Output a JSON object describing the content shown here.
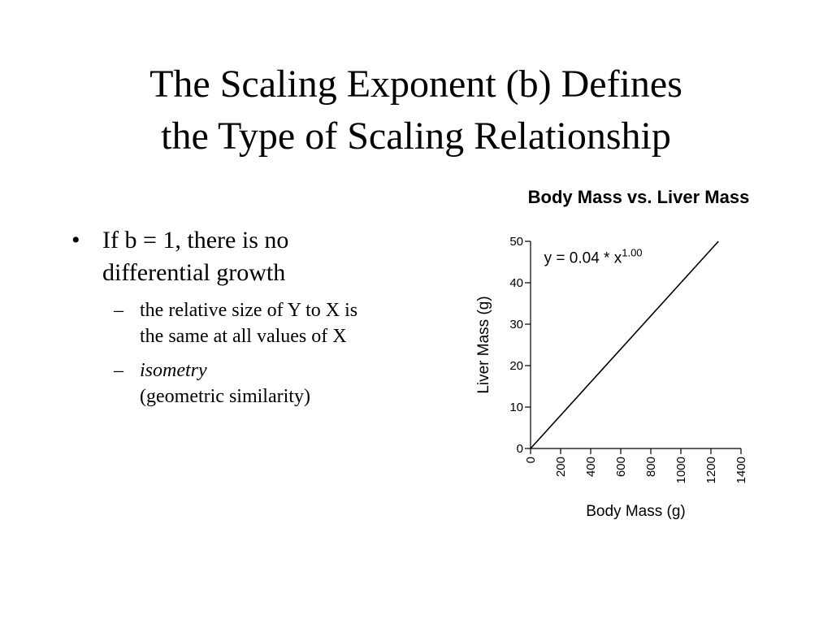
{
  "slide": {
    "title_line1": "The Scaling Exponent (b) Defines",
    "title_line2": "the Type of Scaling Relationship",
    "bullet_mark": "•",
    "dash_mark": "–",
    "bullet1_line1": "If b = 1, there is no",
    "bullet1_line2": "differential growth",
    "sub1_line1": "the relative size of Y to X is",
    "sub1_line2": "the same at all values of X",
    "sub2_line1": "isometry",
    "sub2_line2": "(geometric similarity)"
  },
  "chart_data": {
    "type": "line",
    "title": "Body Mass vs. Liver Mass",
    "xlabel": "Body Mass (g)",
    "ylabel": "Liver Mass (g)",
    "xlim": [
      0,
      1400
    ],
    "ylim": [
      0,
      50
    ],
    "xticks": [
      0,
      200,
      400,
      600,
      800,
      1000,
      1200,
      1400
    ],
    "yticks": [
      0,
      10,
      20,
      30,
      40,
      50
    ],
    "equation_base": "y = 0.04 * x",
    "equation_exponent": "1.00",
    "series": [
      {
        "x": [
          0,
          1250
        ],
        "y": [
          0,
          50
        ]
      }
    ],
    "grid": false,
    "legend": "none"
  }
}
